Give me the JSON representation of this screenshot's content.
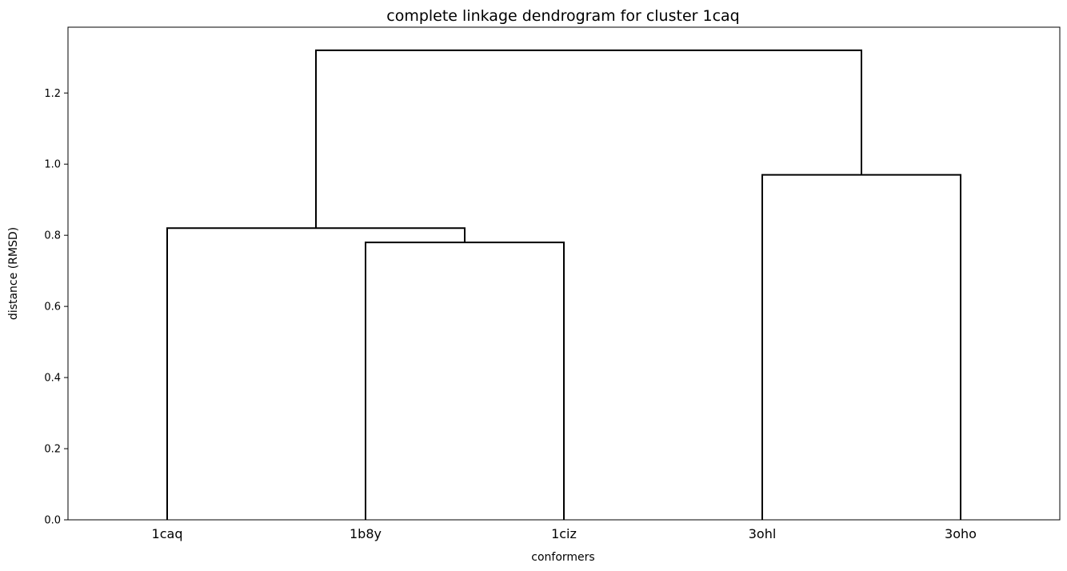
{
  "chart_data": {
    "type": "dendrogram",
    "title": "complete linkage dendrogram for cluster 1caq",
    "xlabel": "conformers",
    "ylabel": "distance (RMSD)",
    "ylim": [
      0,
      1.385
    ],
    "yticks": [
      "0.0",
      "0.2",
      "0.4",
      "0.6",
      "0.8",
      "1.0",
      "1.2"
    ],
    "leaves": [
      "1caq",
      "1b8y",
      "1ciz",
      "3ohl",
      "3oho"
    ],
    "merges": [
      {
        "a": "1b8y",
        "b": "1ciz",
        "height": 0.78
      },
      {
        "a": "1caq",
        "b": "(1b8y,1ciz)",
        "height": 0.82
      },
      {
        "a": "3ohl",
        "b": "3oho",
        "height": 0.97
      },
      {
        "a": "(1caq,(1b8y,1ciz))",
        "b": "(3ohl,3oho)",
        "height": 1.32
      }
    ],
    "grid": false,
    "line_color": "#000000"
  }
}
